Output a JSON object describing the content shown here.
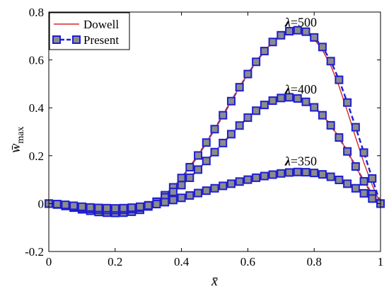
{
  "chart_data": {
    "type": "line",
    "xlabel": "x̄",
    "ylabel_main": "w̄",
    "ylabel_sub": "max",
    "xlim": [
      0,
      1
    ],
    "ylim": [
      -0.2,
      0.8
    ],
    "x_ticks": [
      0,
      0.2,
      0.4,
      0.6,
      0.8,
      1
    ],
    "x_tick_labels": [
      "0",
      "0.2",
      "0.4",
      "0.6",
      "0.8",
      "1"
    ],
    "y_ticks": [
      -0.2,
      0,
      0.2,
      0.4,
      0.6,
      0.8
    ],
    "y_tick_labels": [
      "-0.2",
      "0",
      "0.2",
      "0.4",
      "0.6",
      "0.8"
    ],
    "grid": false,
    "legend": {
      "position": "top-left",
      "entries": [
        {
          "name": "Dowell",
          "style": "solid-line",
          "color": "#d62728"
        },
        {
          "name": "Present",
          "style": "dashed-line-square-marker",
          "color": "#1f1fcf",
          "marker_fill": "#8c8c8c"
        }
      ]
    },
    "curve_labels": [
      {
        "lambda_symbol": "λ",
        "text": "=500",
        "x": 0.76,
        "y": 0.74
      },
      {
        "lambda_symbol": "λ",
        "text": "=400",
        "x": 0.76,
        "y": 0.46
      },
      {
        "lambda_symbol": "λ",
        "text": "=350",
        "x": 0.76,
        "y": 0.16
      }
    ],
    "x": [
      0,
      0.025,
      0.05,
      0.075,
      0.1,
      0.125,
      0.15,
      0.175,
      0.2,
      0.225,
      0.25,
      0.275,
      0.3,
      0.325,
      0.35,
      0.375,
      0.4,
      0.425,
      0.45,
      0.475,
      0.5,
      0.525,
      0.55,
      0.575,
      0.6,
      0.625,
      0.65,
      0.675,
      0.7,
      0.725,
      0.75,
      0.775,
      0.8,
      0.825,
      0.85,
      0.875,
      0.9,
      0.925,
      0.95,
      0.975,
      1
    ],
    "groups": [
      {
        "lambda": 500,
        "dowell": [
          0,
          -0.004,
          -0.01,
          -0.017,
          -0.024,
          -0.03,
          -0.035,
          -0.038,
          -0.039,
          -0.038,
          -0.034,
          -0.026,
          -0.012,
          0.008,
          0.035,
          0.068,
          0.107,
          0.152,
          0.201,
          0.255,
          0.311,
          0.369,
          0.428,
          0.486,
          0.541,
          0.592,
          0.637,
          0.675,
          0.703,
          0.72,
          0.724,
          0.714,
          0.687,
          0.641,
          0.576,
          0.49,
          0.386,
          0.276,
          0.17,
          0.077,
          0
        ],
        "present": [
          0,
          -0.004,
          -0.01,
          -0.017,
          -0.024,
          -0.03,
          -0.035,
          -0.038,
          -0.039,
          -0.038,
          -0.034,
          -0.026,
          -0.012,
          0.008,
          0.035,
          0.068,
          0.107,
          0.152,
          0.201,
          0.255,
          0.311,
          0.369,
          0.428,
          0.486,
          0.541,
          0.592,
          0.637,
          0.675,
          0.703,
          0.72,
          0.724,
          0.718,
          0.694,
          0.654,
          0.595,
          0.517,
          0.422,
          0.319,
          0.213,
          0.105,
          0
        ]
      },
      {
        "lambda": 400,
        "dowell": [
          0,
          -0.003,
          -0.008,
          -0.013,
          -0.018,
          -0.022,
          -0.025,
          -0.027,
          -0.027,
          -0.026,
          -0.023,
          -0.017,
          -0.007,
          0.007,
          0.026,
          0.049,
          0.077,
          0.108,
          0.142,
          0.178,
          0.215,
          0.253,
          0.29,
          0.326,
          0.359,
          0.388,
          0.412,
          0.43,
          0.441,
          0.444,
          0.439,
          0.425,
          0.402,
          0.369,
          0.327,
          0.276,
          0.218,
          0.155,
          0.093,
          0.04,
          0
        ],
        "present": [
          0,
          -0.003,
          -0.008,
          -0.013,
          -0.018,
          -0.022,
          -0.025,
          -0.027,
          -0.027,
          -0.026,
          -0.023,
          -0.017,
          -0.007,
          0.007,
          0.026,
          0.049,
          0.077,
          0.108,
          0.142,
          0.178,
          0.215,
          0.253,
          0.29,
          0.326,
          0.359,
          0.388,
          0.412,
          0.43,
          0.441,
          0.444,
          0.439,
          0.425,
          0.402,
          0.369,
          0.327,
          0.276,
          0.218,
          0.155,
          0.093,
          0.04,
          0
        ]
      },
      {
        "lambda": 350,
        "dowell": [
          0,
          -0.002,
          -0.005,
          -0.009,
          -0.013,
          -0.016,
          -0.018,
          -0.019,
          -0.02,
          -0.019,
          -0.017,
          -0.013,
          -0.008,
          -0.002,
          0.006,
          0.015,
          0.024,
          0.034,
          0.044,
          0.054,
          0.064,
          0.074,
          0.083,
          0.092,
          0.1,
          0.108,
          0.115,
          0.121,
          0.126,
          0.13,
          0.132,
          0.131,
          0.128,
          0.122,
          0.112,
          0.099,
          0.083,
          0.064,
          0.043,
          0.021,
          0
        ],
        "present": [
          0,
          -0.002,
          -0.005,
          -0.009,
          -0.013,
          -0.016,
          -0.018,
          -0.019,
          -0.02,
          -0.019,
          -0.017,
          -0.013,
          -0.008,
          -0.002,
          0.006,
          0.015,
          0.024,
          0.034,
          0.044,
          0.054,
          0.064,
          0.074,
          0.083,
          0.092,
          0.1,
          0.108,
          0.115,
          0.121,
          0.126,
          0.13,
          0.132,
          0.131,
          0.128,
          0.122,
          0.112,
          0.099,
          0.083,
          0.064,
          0.043,
          0.021,
          0
        ]
      }
    ]
  }
}
